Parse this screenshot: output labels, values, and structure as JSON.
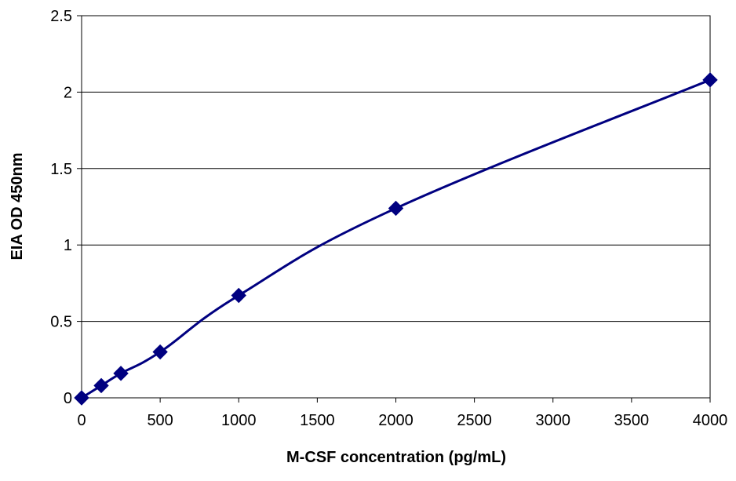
{
  "chart_data": {
    "type": "line",
    "title": "",
    "xlabel": "M-CSF concentration (pg/mL)",
    "ylabel": "EIA OD 450nm",
    "xlim": [
      0,
      4000
    ],
    "ylim": [
      0,
      2.5
    ],
    "x_ticks": [
      "0",
      "500",
      "1000",
      "1500",
      "2000",
      "2500",
      "3000",
      "3500",
      "4000"
    ],
    "y_ticks": [
      "0",
      "0.5",
      "1",
      "1.5",
      "2",
      "2.5"
    ],
    "grid": "horizontal",
    "legend": "none",
    "marker": "diamond",
    "smooth": true,
    "series": [
      {
        "color": "#000080",
        "points": [
          {
            "x": 0,
            "y": 0
          },
          {
            "x": 125,
            "y": 0.08
          },
          {
            "x": 250,
            "y": 0.16
          },
          {
            "x": 500,
            "y": 0.3
          },
          {
            "x": 1000,
            "y": 0.67
          },
          {
            "x": 2000,
            "y": 1.24
          },
          {
            "x": 4000,
            "y": 2.08
          }
        ]
      }
    ]
  }
}
